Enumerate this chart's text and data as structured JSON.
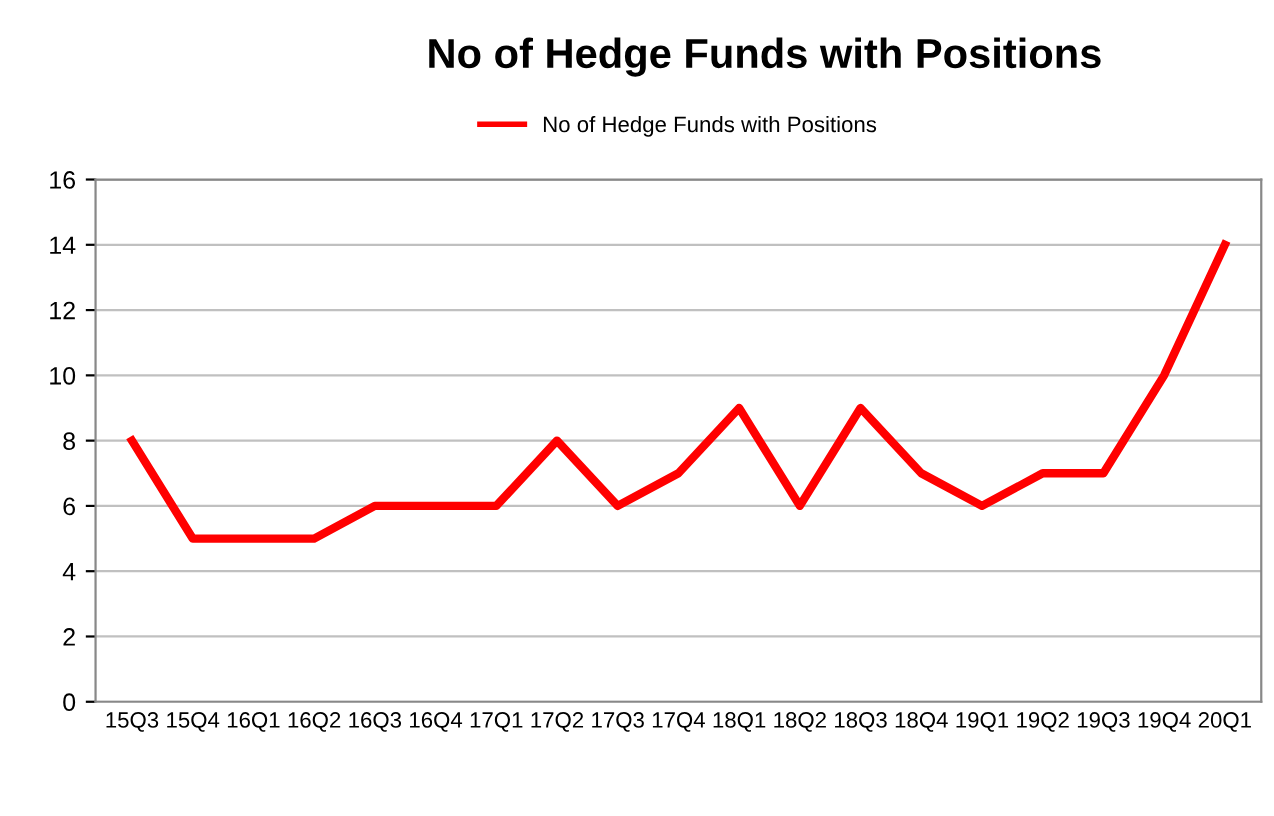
{
  "chart_data": {
    "type": "line",
    "title": "No of Hedge Funds with Positions",
    "categories": [
      "15Q3",
      "15Q4",
      "16Q1",
      "16Q2",
      "16Q3",
      "16Q4",
      "17Q1",
      "17Q2",
      "17Q3",
      "17Q4",
      "18Q1",
      "18Q2",
      "18Q3",
      "18Q4",
      "19Q1",
      "19Q2",
      "19Q3",
      "19Q4",
      "20Q1"
    ],
    "series": [
      {
        "name": "No of Hedge Funds with Positions",
        "color": "#ff0000",
        "values": [
          8,
          5,
          5,
          5,
          6,
          6,
          6,
          8,
          6,
          7,
          9,
          6,
          9,
          7,
          6,
          7,
          7,
          10,
          14
        ]
      }
    ],
    "ylim": [
      0,
      16
    ],
    "yticks": [
      0,
      2,
      4,
      6,
      8,
      10,
      12,
      14,
      16
    ],
    "grid": "y",
    "legend": "top",
    "marker": "none",
    "line_style": "solid"
  }
}
